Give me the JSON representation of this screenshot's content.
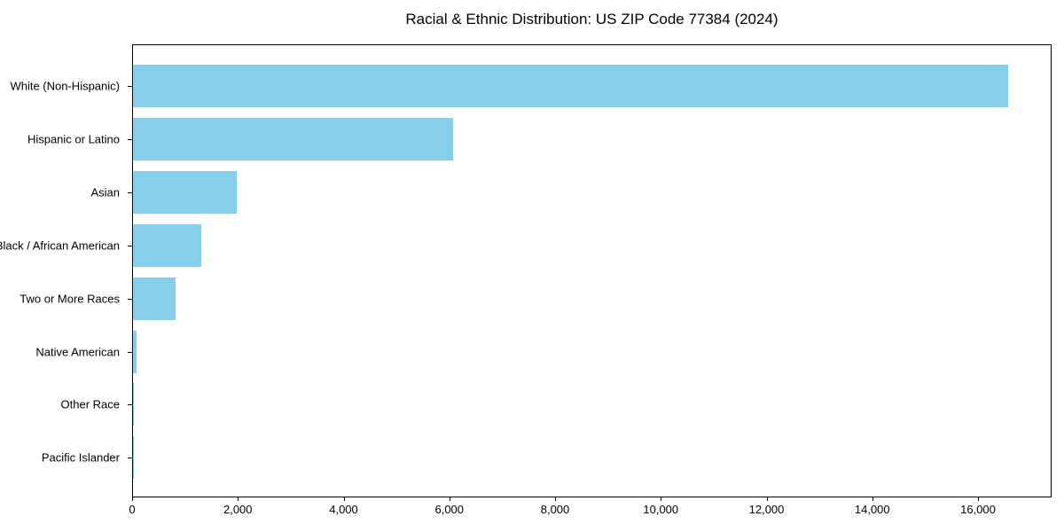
{
  "chart_data": {
    "type": "bar",
    "orientation": "horizontal",
    "title": "Racial & Ethnic Distribution: US ZIP Code 77384 (2024)",
    "categories": [
      "White (Non-Hispanic)",
      "Hispanic or Latino",
      "Asian",
      "Black / African American",
      "Two or More Races",
      "Native American",
      "Other Race",
      "Pacific Islander"
    ],
    "values": [
      16550,
      6050,
      1960,
      1290,
      810,
      65,
      15,
      5
    ],
    "xlabel": "",
    "ylabel": "",
    "xlim": [
      0,
      17400
    ],
    "x_tick_values": [
      0,
      2000,
      4000,
      6000,
      8000,
      10000,
      12000,
      14000,
      16000
    ],
    "x_tick_labels": [
      "0",
      "2,000",
      "4,000",
      "6,000",
      "8,000",
      "10,000",
      "12,000",
      "14,000",
      "16,000"
    ],
    "bar_color": "#87CEEB",
    "text_color": "#000000",
    "grid": false,
    "legend_position": "none"
  }
}
